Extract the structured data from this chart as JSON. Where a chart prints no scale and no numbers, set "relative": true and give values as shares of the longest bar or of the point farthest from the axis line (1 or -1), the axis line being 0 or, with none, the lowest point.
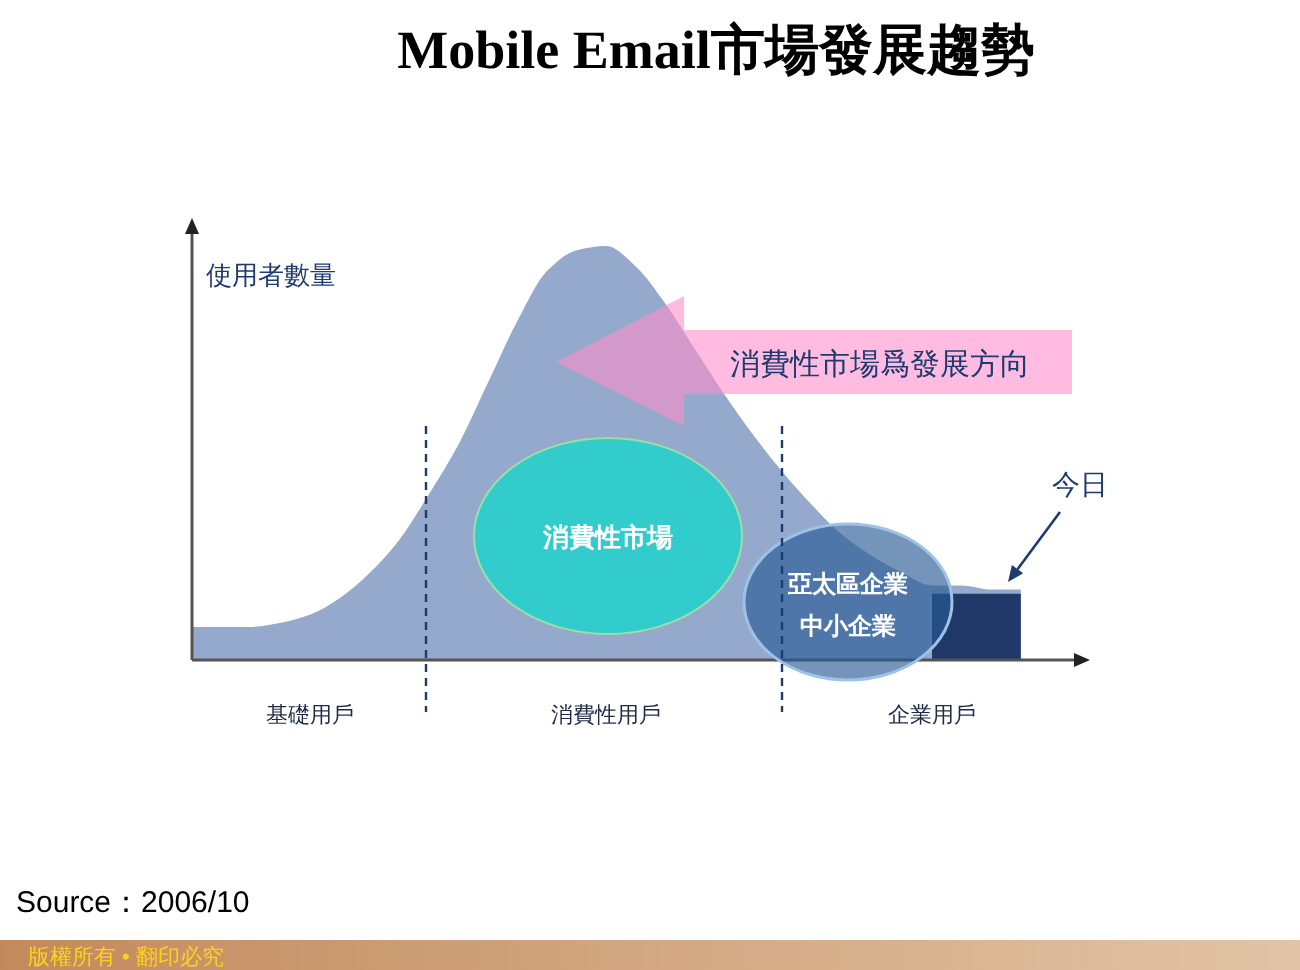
{
  "chart_data": {
    "type": "area",
    "title": "Mobile Email市場發展趨勢",
    "ylabel": "使用者數量",
    "relative": true,
    "categories": [
      null,
      null,
      null,
      null,
      "基礎用戶",
      null,
      null,
      null,
      null,
      null,
      null,
      null,
      null,
      null,
      "消費性用戶",
      null,
      null,
      null,
      null,
      null,
      null,
      null,
      null,
      null,
      null,
      "企業用戶",
      null,
      null,
      null
    ],
    "series": [
      {
        "color": "#94a9cb",
        "values": [
          0.08,
          0.08,
          0.08,
          0.09,
          0.11,
          0.15,
          0.21,
          0.29,
          0.4,
          0.52,
          0.67,
          0.82,
          0.94,
          0.99,
          1,
          0.95,
          0.86,
          0.75,
          0.64,
          0.54,
          0.45,
          0.37,
          0.3,
          0.25,
          0.21,
          0.18,
          0.18,
          0.17,
          0.17
        ]
      },
      {
        "color": "#1f3868",
        "values": [
          null,
          null,
          null,
          null,
          null,
          null,
          null,
          null,
          null,
          null,
          null,
          null,
          null,
          null,
          null,
          null,
          null,
          null,
          null,
          null,
          null,
          null,
          null,
          null,
          null,
          0.16,
          0.16,
          0.16,
          0.16
        ]
      }
    ],
    "annotations": [
      "消費性市場爲發展方向",
      "消費性市場",
      "亞太區企業",
      "中小企業",
      "今日",
      "Source：2006/10",
      "版權所有 • 翻印必究"
    ]
  }
}
